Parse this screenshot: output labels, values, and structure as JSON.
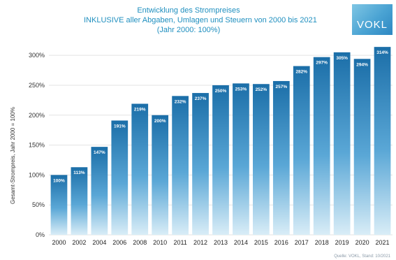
{
  "header": {
    "title_line1": "Entwicklung des Strompreises",
    "title_line2": "INKLUSIVE aller Abgaben, Umlagen und Steuern von 2000 bis 2021",
    "title_line3": "(Jahr 2000: 100%)"
  },
  "logo": {
    "text": "VOKL"
  },
  "source": "Quelle: VOKL, Stand: 10/2021",
  "colors": {
    "accent": "#1f8fbf",
    "bar_top": "#1b6ea8",
    "bar_bottom": "#cfe6f3"
  },
  "chart_data": {
    "type": "bar",
    "categories": [
      "2000",
      "2002",
      "2004",
      "2006",
      "2008",
      "2010",
      "2011",
      "2012",
      "2013",
      "2014",
      "2015",
      "2016",
      "2017",
      "2018",
      "2019",
      "2020",
      "2021"
    ],
    "values": [
      100,
      113,
      147,
      191,
      219,
      200,
      232,
      237,
      250,
      253,
      252,
      257,
      282,
      297,
      305,
      294,
      314
    ],
    "data_labels": [
      "100%",
      "113%",
      "147%",
      "191%",
      "219%",
      "200%",
      "232%",
      "237%",
      "250%",
      "253%",
      "252%",
      "257%",
      "282%",
      "297%",
      "305%",
      "294%",
      "314%"
    ],
    "yticks": [
      0,
      50,
      100,
      150,
      200,
      250,
      300
    ],
    "ytick_labels": [
      "0%",
      "50%",
      "100%",
      "150%",
      "200%",
      "250%",
      "300%"
    ],
    "ylim": [
      0,
      320
    ],
    "ylabel": "Gesamt-Strompreis, Jahr 2000 = 100%",
    "xlabel": "",
    "grid": true,
    "title": "Entwicklung des Strompreises"
  }
}
